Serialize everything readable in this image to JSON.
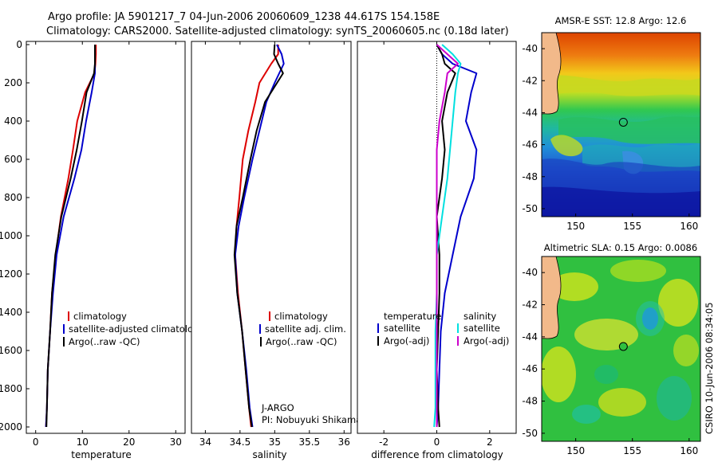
{
  "title_line1": "Argo profile: JA 5901217_7 04-Jun-2006 20060609_1238 44.617S 154.158E",
  "title_line2": "Climatology: CARS2000. Satellite-adjusted climatology: synTS_20060605.nc (0.18d later)",
  "side_text": "CSIRO 10-Jun-2006 08:34:05",
  "chart_data": [
    {
      "type": "line",
      "xlabel": "temperature",
      "xlim": [
        -2,
        32
      ],
      "ylim": [
        2050,
        0
      ],
      "xticks": [
        "0",
        "10",
        "20",
        "30"
      ],
      "yticks": [
        "0",
        "200",
        "400",
        "600",
        "800",
        "1000",
        "1200",
        "1400",
        "1600",
        "1800",
        "2000"
      ],
      "legend": [
        "climatology",
        "satellite-adjusted climatology",
        "Argo(..raw -QC)"
      ],
      "series": [
        {
          "name": "climatology",
          "color": "#dd0000",
          "x": [
            12.9,
            12.9,
            12.8,
            12.6,
            10.6,
            8.9,
            8.0,
            7.0,
            5.4,
            4.3,
            3.5,
            3.1,
            2.6,
            2.4,
            2.2
          ],
          "y": [
            0,
            50,
            100,
            150,
            250,
            400,
            550,
            700,
            900,
            1100,
            1300,
            1500,
            1700,
            1900,
            2000
          ]
        },
        {
          "name": "satellite-adjusted climatology",
          "color": "#0000cc",
          "x": [
            12.7,
            12.7,
            12.7,
            12.7,
            12.0,
            10.8,
            9.8,
            8.3,
            6.0,
            4.5,
            3.7,
            3.1,
            2.6,
            2.4,
            2.2
          ],
          "y": [
            0,
            50,
            100,
            150,
            250,
            400,
            550,
            700,
            900,
            1100,
            1300,
            1500,
            1700,
            1900,
            2000
          ]
        },
        {
          "name": "Argo(..raw -QC)",
          "color": "#000000",
          "x": [
            12.7,
            12.7,
            12.7,
            12.5,
            10.9,
            9.9,
            8.8,
            7.5,
            5.5,
            4.2,
            3.5,
            3.1,
            2.6,
            2.4,
            2.3
          ],
          "y": [
            0,
            50,
            100,
            150,
            250,
            400,
            550,
            700,
            900,
            1100,
            1300,
            1500,
            1700,
            1900,
            2000
          ]
        }
      ]
    },
    {
      "type": "line",
      "xlabel": "salinity",
      "xlim": [
        33.8,
        36.1
      ],
      "ylim": [
        2050,
        0
      ],
      "xticks": [
        "34",
        "34.5",
        "35",
        "35.5",
        "36"
      ],
      "legend": [
        "climatology",
        "satellite adj. clim.",
        "Argo(..raw -QC)"
      ],
      "series": [
        {
          "name": "climatology",
          "color": "#dd0000",
          "x": [
            35.05,
            35.05,
            34.95,
            34.78,
            34.72,
            34.62,
            34.54,
            34.49,
            34.45,
            34.43,
            34.47,
            34.53,
            34.58,
            34.63,
            34.66
          ],
          "y": [
            0,
            50,
            100,
            200,
            300,
            450,
            600,
            800,
            950,
            1100,
            1300,
            1500,
            1700,
            1900,
            2000
          ]
        },
        {
          "name": "satellite adj. clim.",
          "color": "#0000cc",
          "x": [
            35.03,
            35.1,
            35.13,
            35.0,
            34.88,
            34.78,
            34.68,
            34.56,
            34.48,
            34.43,
            34.46,
            34.53,
            34.59,
            34.64,
            34.68
          ],
          "y": [
            0,
            50,
            100,
            200,
            300,
            450,
            600,
            800,
            950,
            1100,
            1300,
            1500,
            1700,
            1900,
            2000
          ]
        },
        {
          "name": "Argo(..raw -QC)",
          "color": "#000000",
          "x": [
            35.0,
            34.99,
            35.05,
            35.12,
            34.86,
            34.74,
            34.65,
            34.54,
            34.45,
            34.42,
            34.46,
            34.53,
            34.58,
            34.63,
            34.67
          ],
          "y": [
            0,
            50,
            100,
            150,
            300,
            450,
            600,
            800,
            950,
            1100,
            1300,
            1500,
            1700,
            1900,
            2000
          ]
        }
      ],
      "annotation": [
        "J-ARGO",
        "PI: Nobuyuki Shikama"
      ]
    },
    {
      "type": "line",
      "xlabel": "difference from climatology",
      "xlim": [
        -3,
        3
      ],
      "ylim": [
        2050,
        0
      ],
      "xticks": [
        "-2",
        "0",
        "2"
      ],
      "legend_left_title": "temperature",
      "legend_right_title": "salinity",
      "legend_left": [
        "satellite",
        "Argo(-adj)"
      ],
      "legend_right": [
        "satellite",
        "Argo(-adj)"
      ],
      "series": [
        {
          "name": "temperature satellite",
          "color": "#0000cc",
          "x": [
            0.0,
            0.2,
            0.6,
            1.5,
            1.3,
            1.1,
            1.5,
            1.4,
            0.9,
            0.6,
            0.3,
            0.15,
            0.1,
            0.05,
            0.0
          ],
          "y": [
            0,
            50,
            100,
            150,
            250,
            400,
            550,
            700,
            900,
            1100,
            1300,
            1500,
            1700,
            1900,
            2000
          ]
        },
        {
          "name": "temperature Argo(-adj)",
          "color": "#000000",
          "x": [
            0.0,
            0.2,
            0.3,
            0.7,
            0.4,
            0.2,
            0.3,
            0.2,
            0.0,
            0.1,
            0.1,
            0.05,
            0.0,
            0.05,
            0.1
          ],
          "y": [
            0,
            50,
            100,
            150,
            250,
            400,
            550,
            700,
            900,
            1100,
            1300,
            1500,
            1700,
            1900,
            2000
          ]
        },
        {
          "name": "salinity satellite",
          "color": "#00e0e0",
          "x": [
            0.2,
            0.6,
            0.9,
            0.8,
            0.7,
            0.6,
            0.5,
            0.4,
            0.2,
            0.0,
            0.0,
            -0.05,
            -0.05,
            -0.05,
            -0.1
          ],
          "y": [
            0,
            50,
            100,
            150,
            250,
            400,
            550,
            700,
            900,
            1100,
            1300,
            1500,
            1700,
            1900,
            2000
          ]
        },
        {
          "name": "salinity Argo(-adj)",
          "color": "#cc00cc",
          "x": [
            0.0,
            0.4,
            0.8,
            0.4,
            0.3,
            0.1,
            0.0,
            0.0,
            0.0,
            0.0,
            0.0,
            0.0,
            0.0,
            0.0,
            0.0
          ],
          "y": [
            0,
            50,
            100,
            150,
            250,
            400,
            550,
            700,
            900,
            1100,
            1300,
            1500,
            1700,
            1900,
            2000
          ]
        }
      ]
    },
    {
      "type": "heatmap",
      "title": "AMSR-E SST: 12.8 Argo: 12.6",
      "xlim": [
        147,
        161
      ],
      "ylim": [
        -50.5,
        -39
      ],
      "xticks": [
        "150",
        "155",
        "160"
      ],
      "yticks": [
        "-40",
        "-42",
        "-44",
        "-46",
        "-48",
        "-50"
      ],
      "marker": {
        "lon": 154.2,
        "lat": -44.6
      }
    },
    {
      "type": "heatmap",
      "title": "Altimetric SLA: 0.15 Argo: 0.0086",
      "xlim": [
        147,
        161
      ],
      "ylim": [
        -50.5,
        -39
      ],
      "xticks": [
        "150",
        "155",
        "160"
      ],
      "yticks": [
        "-40",
        "-42",
        "-44",
        "-46",
        "-48",
        "-50"
      ],
      "marker": {
        "lon": 154.2,
        "lat": -44.6
      }
    }
  ]
}
